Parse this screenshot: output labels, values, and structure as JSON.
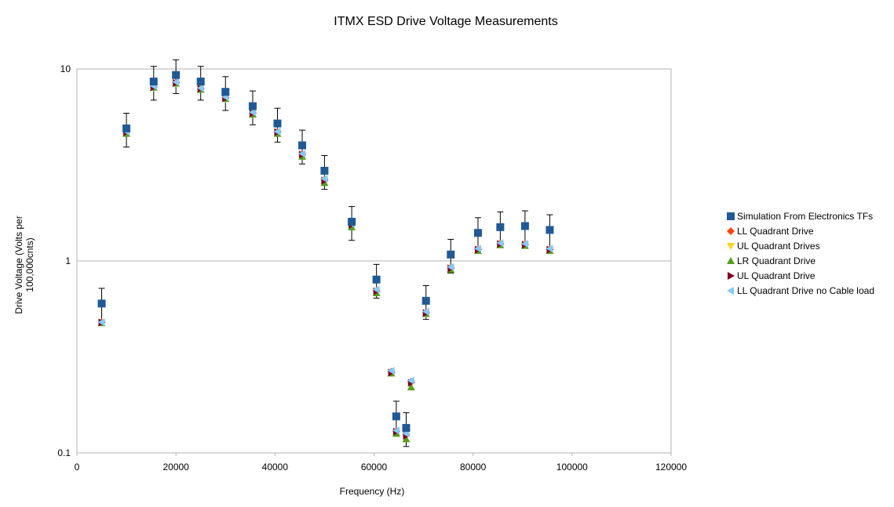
{
  "chart_data": {
    "type": "scatter",
    "title": "ITMX ESD Drive Voltage Measurements",
    "xlabel": "Frequency (Hz)",
    "ylabel_lines": [
      "Drive Voltage (Volts per",
      "100,000cnts)"
    ],
    "xlim": [
      0,
      120000
    ],
    "ylim": [
      0.1,
      10
    ],
    "y_scale": "log",
    "x_ticks": [
      0,
      20000,
      40000,
      60000,
      80000,
      100000,
      120000
    ],
    "x_tick_labels": [
      "0",
      "20000",
      "40000",
      "60000",
      "80000",
      "100000",
      "120000"
    ],
    "y_ticks": [
      0.1,
      1,
      10
    ],
    "y_tick_labels": [
      "0.1",
      "1",
      "10"
    ],
    "grid": "horizontal major lines",
    "legend_position": "right",
    "series": [
      {
        "name": "Simulation From Electronics TFs",
        "marker": "square",
        "color": "#1f5a96",
        "error_bar_fraction": 0.2,
        "x": [
          5000,
          10000,
          15500,
          20000,
          25000,
          30000,
          35500,
          40500,
          45500,
          50000,
          55500,
          60500,
          64500,
          66500,
          70500,
          75500,
          81000,
          85500,
          90500,
          95500
        ],
        "y": [
          0.6,
          4.9,
          8.6,
          9.3,
          8.6,
          7.6,
          6.4,
          5.2,
          4.0,
          2.95,
          1.6,
          0.8,
          0.155,
          0.135,
          0.62,
          1.08,
          1.4,
          1.5,
          1.52,
          1.45
        ]
      },
      {
        "name": "LL Quadrant Drive",
        "marker": "diamond",
        "color": "#ff420e",
        "x": [
          5000,
          10000,
          15500,
          20000,
          25000,
          30000,
          35500,
          40500,
          45500,
          50000,
          55500,
          60500,
          63500,
          64500,
          66500,
          67500,
          70500,
          75500,
          81000,
          85500,
          90500,
          95500
        ],
        "y": [
          0.48,
          4.7,
          8.1,
          8.5,
          7.9,
          7.1,
          5.9,
          4.7,
          3.6,
          2.65,
          1.55,
          0.7,
          0.265,
          0.13,
          0.125,
          0.235,
          0.54,
          0.92,
          1.15,
          1.23,
          1.22,
          1.15
        ]
      },
      {
        "name": "UL Quadrant Drives",
        "marker": "triangle-down",
        "color": "#ffd320",
        "x": [
          5000,
          10000,
          15500,
          20000,
          25000,
          30000,
          35500,
          40500,
          45500,
          50000,
          55500,
          60500,
          63500,
          64500,
          66500,
          67500,
          70500,
          75500,
          81000,
          85500,
          90500,
          95500
        ],
        "y": [
          0.475,
          4.65,
          8.0,
          8.4,
          7.85,
          7.0,
          5.85,
          4.65,
          3.55,
          2.6,
          1.53,
          0.69,
          0.26,
          0.128,
          0.122,
          0.23,
          0.53,
          0.91,
          1.14,
          1.22,
          1.21,
          1.14
        ]
      },
      {
        "name": "LR Quadrant Drive",
        "marker": "triangle-up",
        "color": "#579d1c",
        "x": [
          5000,
          10000,
          15500,
          20000,
          25000,
          30000,
          35500,
          40500,
          45500,
          50000,
          55500,
          60500,
          63500,
          64500,
          66500,
          67500,
          70500,
          75500,
          81000,
          85500,
          90500,
          95500
        ],
        "y": [
          0.475,
          4.6,
          8.0,
          8.4,
          7.8,
          7.0,
          5.8,
          4.6,
          3.5,
          2.55,
          1.5,
          0.68,
          0.26,
          0.126,
          0.118,
          0.22,
          0.53,
          0.9,
          1.13,
          1.21,
          1.2,
          1.13
        ]
      },
      {
        "name": "UL Quadrant Drive",
        "marker": "triangle-right",
        "color": "#7e0021",
        "x": [
          5000,
          10000,
          15500,
          20000,
          25000,
          30000,
          35500,
          40500,
          45500,
          50000,
          55500,
          60500,
          63500,
          64500,
          66500,
          67500,
          70500,
          75500,
          81000,
          85500,
          90500,
          95500
        ],
        "y": [
          0.478,
          4.68,
          8.05,
          8.45,
          7.9,
          7.05,
          5.88,
          4.68,
          3.58,
          2.62,
          1.54,
          0.695,
          0.262,
          0.129,
          0.123,
          0.232,
          0.535,
          0.915,
          1.145,
          1.225,
          1.215,
          1.145
        ]
      },
      {
        "name": "LL Quadrant Drive no Cable load",
        "marker": "triangle-left",
        "color": "#83caff",
        "x": [
          5000,
          10000,
          15500,
          20000,
          25000,
          30000,
          35500,
          40500,
          45500,
          50000,
          55500,
          60500,
          63500,
          64500,
          66500,
          67500,
          70500,
          75500,
          81000,
          85500,
          90500,
          95500
        ],
        "y": [
          0.48,
          4.72,
          8.15,
          8.55,
          7.95,
          7.15,
          5.95,
          4.72,
          3.62,
          2.68,
          1.56,
          0.71,
          0.268,
          0.131,
          0.126,
          0.238,
          0.545,
          0.93,
          1.16,
          1.24,
          1.23,
          1.16
        ]
      }
    ]
  }
}
